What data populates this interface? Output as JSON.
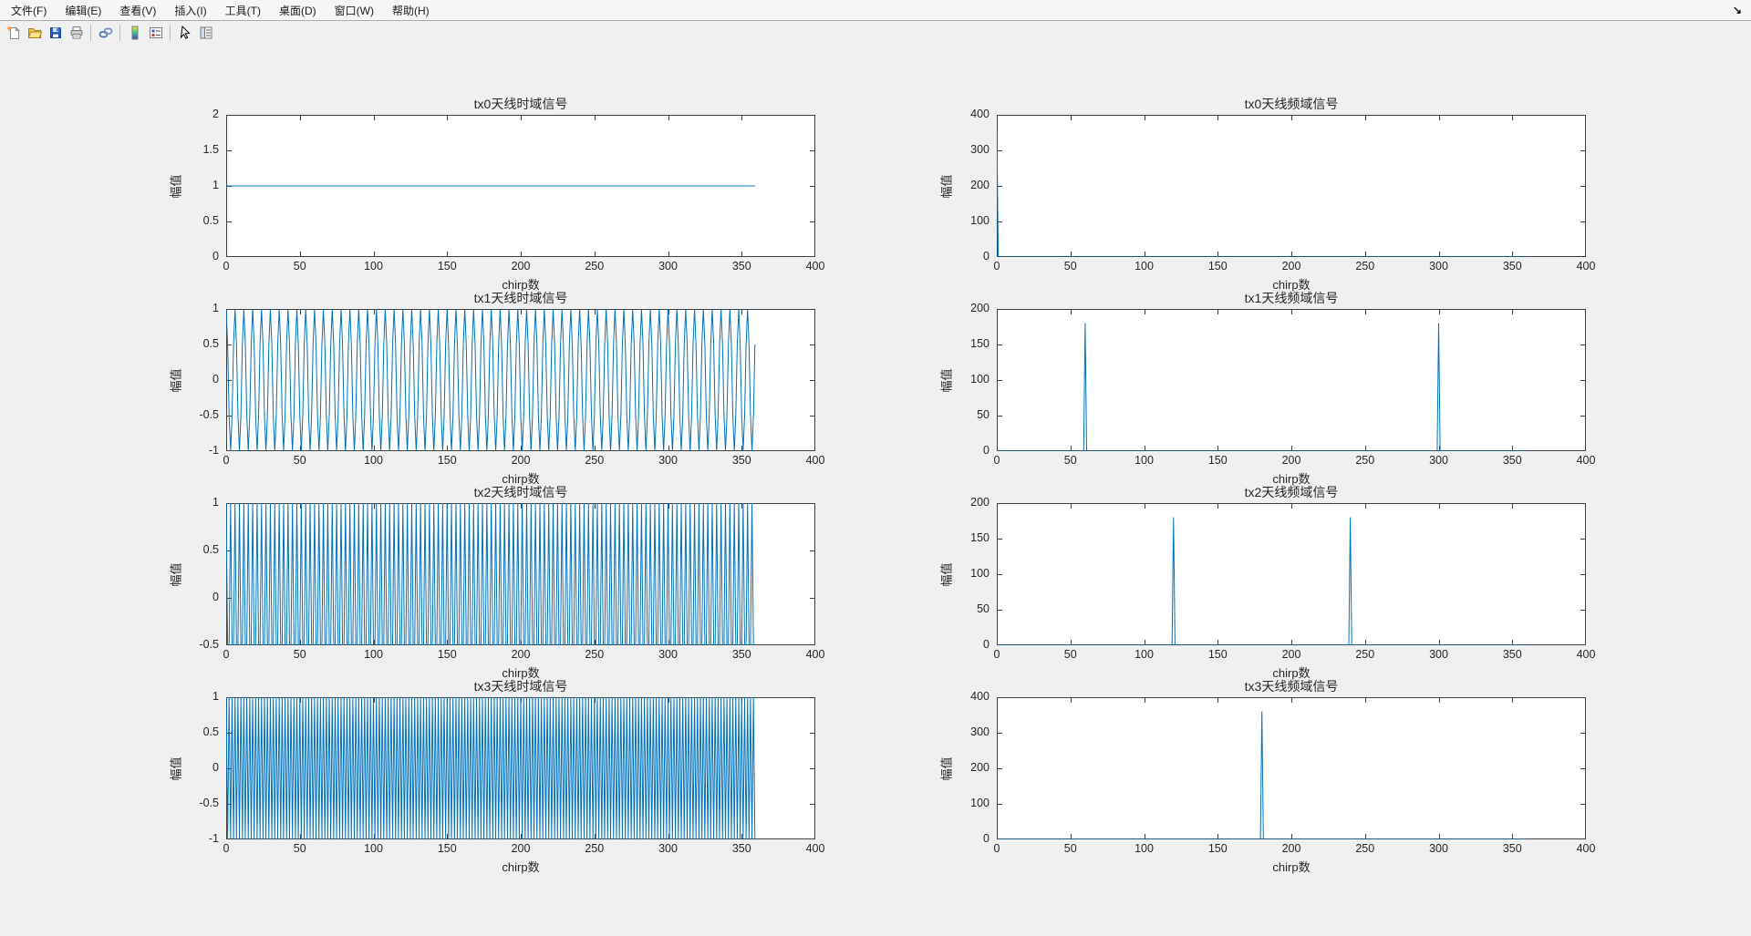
{
  "menu": {
    "items": [
      {
        "label": "文件(F)"
      },
      {
        "label": "编辑(E)"
      },
      {
        "label": "查看(V)"
      },
      {
        "label": "插入(I)"
      },
      {
        "label": "工具(T)"
      },
      {
        "label": "桌面(D)"
      },
      {
        "label": "窗口(W)"
      },
      {
        "label": "帮助(H)"
      }
    ]
  },
  "toolbar": {
    "icons": [
      "new-figure-icon",
      "open-file-icon",
      "save-figure-icon",
      "print-figure-icon",
      "link-plot-icon",
      "insert-colorbar-icon",
      "insert-legend-icon",
      "edit-plot-icon",
      "property-inspector-icon"
    ]
  },
  "colors": {
    "line": "#0072BD",
    "axes_edge": "#404040",
    "text": "#262626",
    "figure_bg": "#f0f0f0",
    "plot_bg": "#ffffff"
  },
  "chart_data": [
    {
      "id": "tx0-time",
      "type": "line",
      "title": "tx0天线时域信号",
      "xlabel": "chirp数",
      "ylabel": "幅值",
      "xlim": [
        0,
        400
      ],
      "ylim": [
        0,
        2
      ],
      "xticks": [
        0,
        50,
        100,
        150,
        200,
        250,
        300,
        350,
        400
      ],
      "yticks": [
        0,
        0.5,
        1,
        1.5,
        2
      ],
      "series": {
        "kind": "cosine",
        "n_samples": 360,
        "cycles": 0,
        "amplitude": 1,
        "description": "constant value 1 from chirp 0 to 359"
      }
    },
    {
      "id": "tx0-freq",
      "type": "line",
      "title": "tx0天线频域信号",
      "xlabel": "chirp数",
      "ylabel": "幅值",
      "xlim": [
        0,
        400
      ],
      "ylim": [
        0,
        400
      ],
      "xticks": [
        0,
        50,
        100,
        150,
        200,
        250,
        300,
        350,
        400
      ],
      "yticks": [
        0,
        100,
        200,
        300,
        400
      ],
      "series": {
        "kind": "spectrum",
        "baseline_end": 360,
        "spikes": [
          {
            "bin": 0,
            "magnitude": 360
          }
        ],
        "description": "FFT magnitude: single peak of 360 at bin 0, zero elsewhere up to 360"
      }
    },
    {
      "id": "tx1-time",
      "type": "line",
      "title": "tx1天线时域信号",
      "xlabel": "chirp数",
      "ylabel": "幅值",
      "xlim": [
        0,
        400
      ],
      "ylim": [
        -1,
        1
      ],
      "xticks": [
        0,
        50,
        100,
        150,
        200,
        250,
        300,
        350,
        400
      ],
      "yticks": [
        -1,
        -0.5,
        0,
        0.5,
        1
      ],
      "series": {
        "kind": "cosine",
        "n_samples": 360,
        "cycles": 60,
        "amplitude": 1,
        "description": "cosine, 60 cycles over 360 chirps (period 6)"
      }
    },
    {
      "id": "tx1-freq",
      "type": "line",
      "title": "tx1天线频域信号",
      "xlabel": "chirp数",
      "ylabel": "幅值",
      "xlim": [
        0,
        400
      ],
      "ylim": [
        0,
        200
      ],
      "xticks": [
        0,
        50,
        100,
        150,
        200,
        250,
        300,
        350,
        400
      ],
      "yticks": [
        0,
        50,
        100,
        150,
        200
      ],
      "series": {
        "kind": "spectrum",
        "baseline_end": 360,
        "spikes": [
          {
            "bin": 60,
            "magnitude": 180
          },
          {
            "bin": 300,
            "magnitude": 180
          }
        ],
        "description": "FFT magnitude: peaks of 180 at bins 60 and 300"
      }
    },
    {
      "id": "tx2-time",
      "type": "line",
      "title": "tx2天线时域信号",
      "xlabel": "chirp数",
      "ylabel": "幅值",
      "xlim": [
        0,
        400
      ],
      "ylim": [
        -0.5,
        1
      ],
      "xticks": [
        0,
        50,
        100,
        150,
        200,
        250,
        300,
        350,
        400
      ],
      "yticks": [
        -0.5,
        0,
        0.5,
        1
      ],
      "series": {
        "kind": "cosine",
        "n_samples": 360,
        "cycles": 120,
        "amplitude": 1,
        "description": "cosine, 120 cycles over 360 chirps (period 3, sampled values 1 and -0.5)"
      }
    },
    {
      "id": "tx2-freq",
      "type": "line",
      "title": "tx2天线频域信号",
      "xlabel": "chirp数",
      "ylabel": "幅值",
      "xlim": [
        0,
        400
      ],
      "ylim": [
        0,
        200
      ],
      "xticks": [
        0,
        50,
        100,
        150,
        200,
        250,
        300,
        350,
        400
      ],
      "yticks": [
        0,
        50,
        100,
        150,
        200
      ],
      "series": {
        "kind": "spectrum",
        "baseline_end": 360,
        "spikes": [
          {
            "bin": 120,
            "magnitude": 180
          },
          {
            "bin": 240,
            "magnitude": 180
          }
        ],
        "description": "FFT magnitude: peaks of 180 at bins 120 and 240"
      }
    },
    {
      "id": "tx3-time",
      "type": "line",
      "title": "tx3天线时域信号",
      "xlabel": "chirp数",
      "ylabel": "幅值",
      "xlim": [
        0,
        400
      ],
      "ylim": [
        -1,
        1
      ],
      "xticks": [
        0,
        50,
        100,
        150,
        200,
        250,
        300,
        350,
        400
      ],
      "yticks": [
        -1,
        -0.5,
        0,
        0.5,
        1
      ],
      "series": {
        "kind": "cosine",
        "n_samples": 360,
        "cycles": 180,
        "amplitude": 1,
        "description": "cosine at Nyquist, alternating +1/-1 each chirp"
      }
    },
    {
      "id": "tx3-freq",
      "type": "line",
      "title": "tx3天线频域信号",
      "xlabel": "chirp数",
      "ylabel": "幅值",
      "xlim": [
        0,
        400
      ],
      "ylim": [
        0,
        400
      ],
      "xticks": [
        0,
        50,
        100,
        150,
        200,
        250,
        300,
        350,
        400
      ],
      "yticks": [
        0,
        100,
        200,
        300,
        400
      ],
      "series": {
        "kind": "spectrum",
        "baseline_end": 360,
        "spikes": [
          {
            "bin": 180,
            "magnitude": 360
          }
        ],
        "description": "FFT magnitude: single peak of 360 at bin 180"
      }
    }
  ]
}
